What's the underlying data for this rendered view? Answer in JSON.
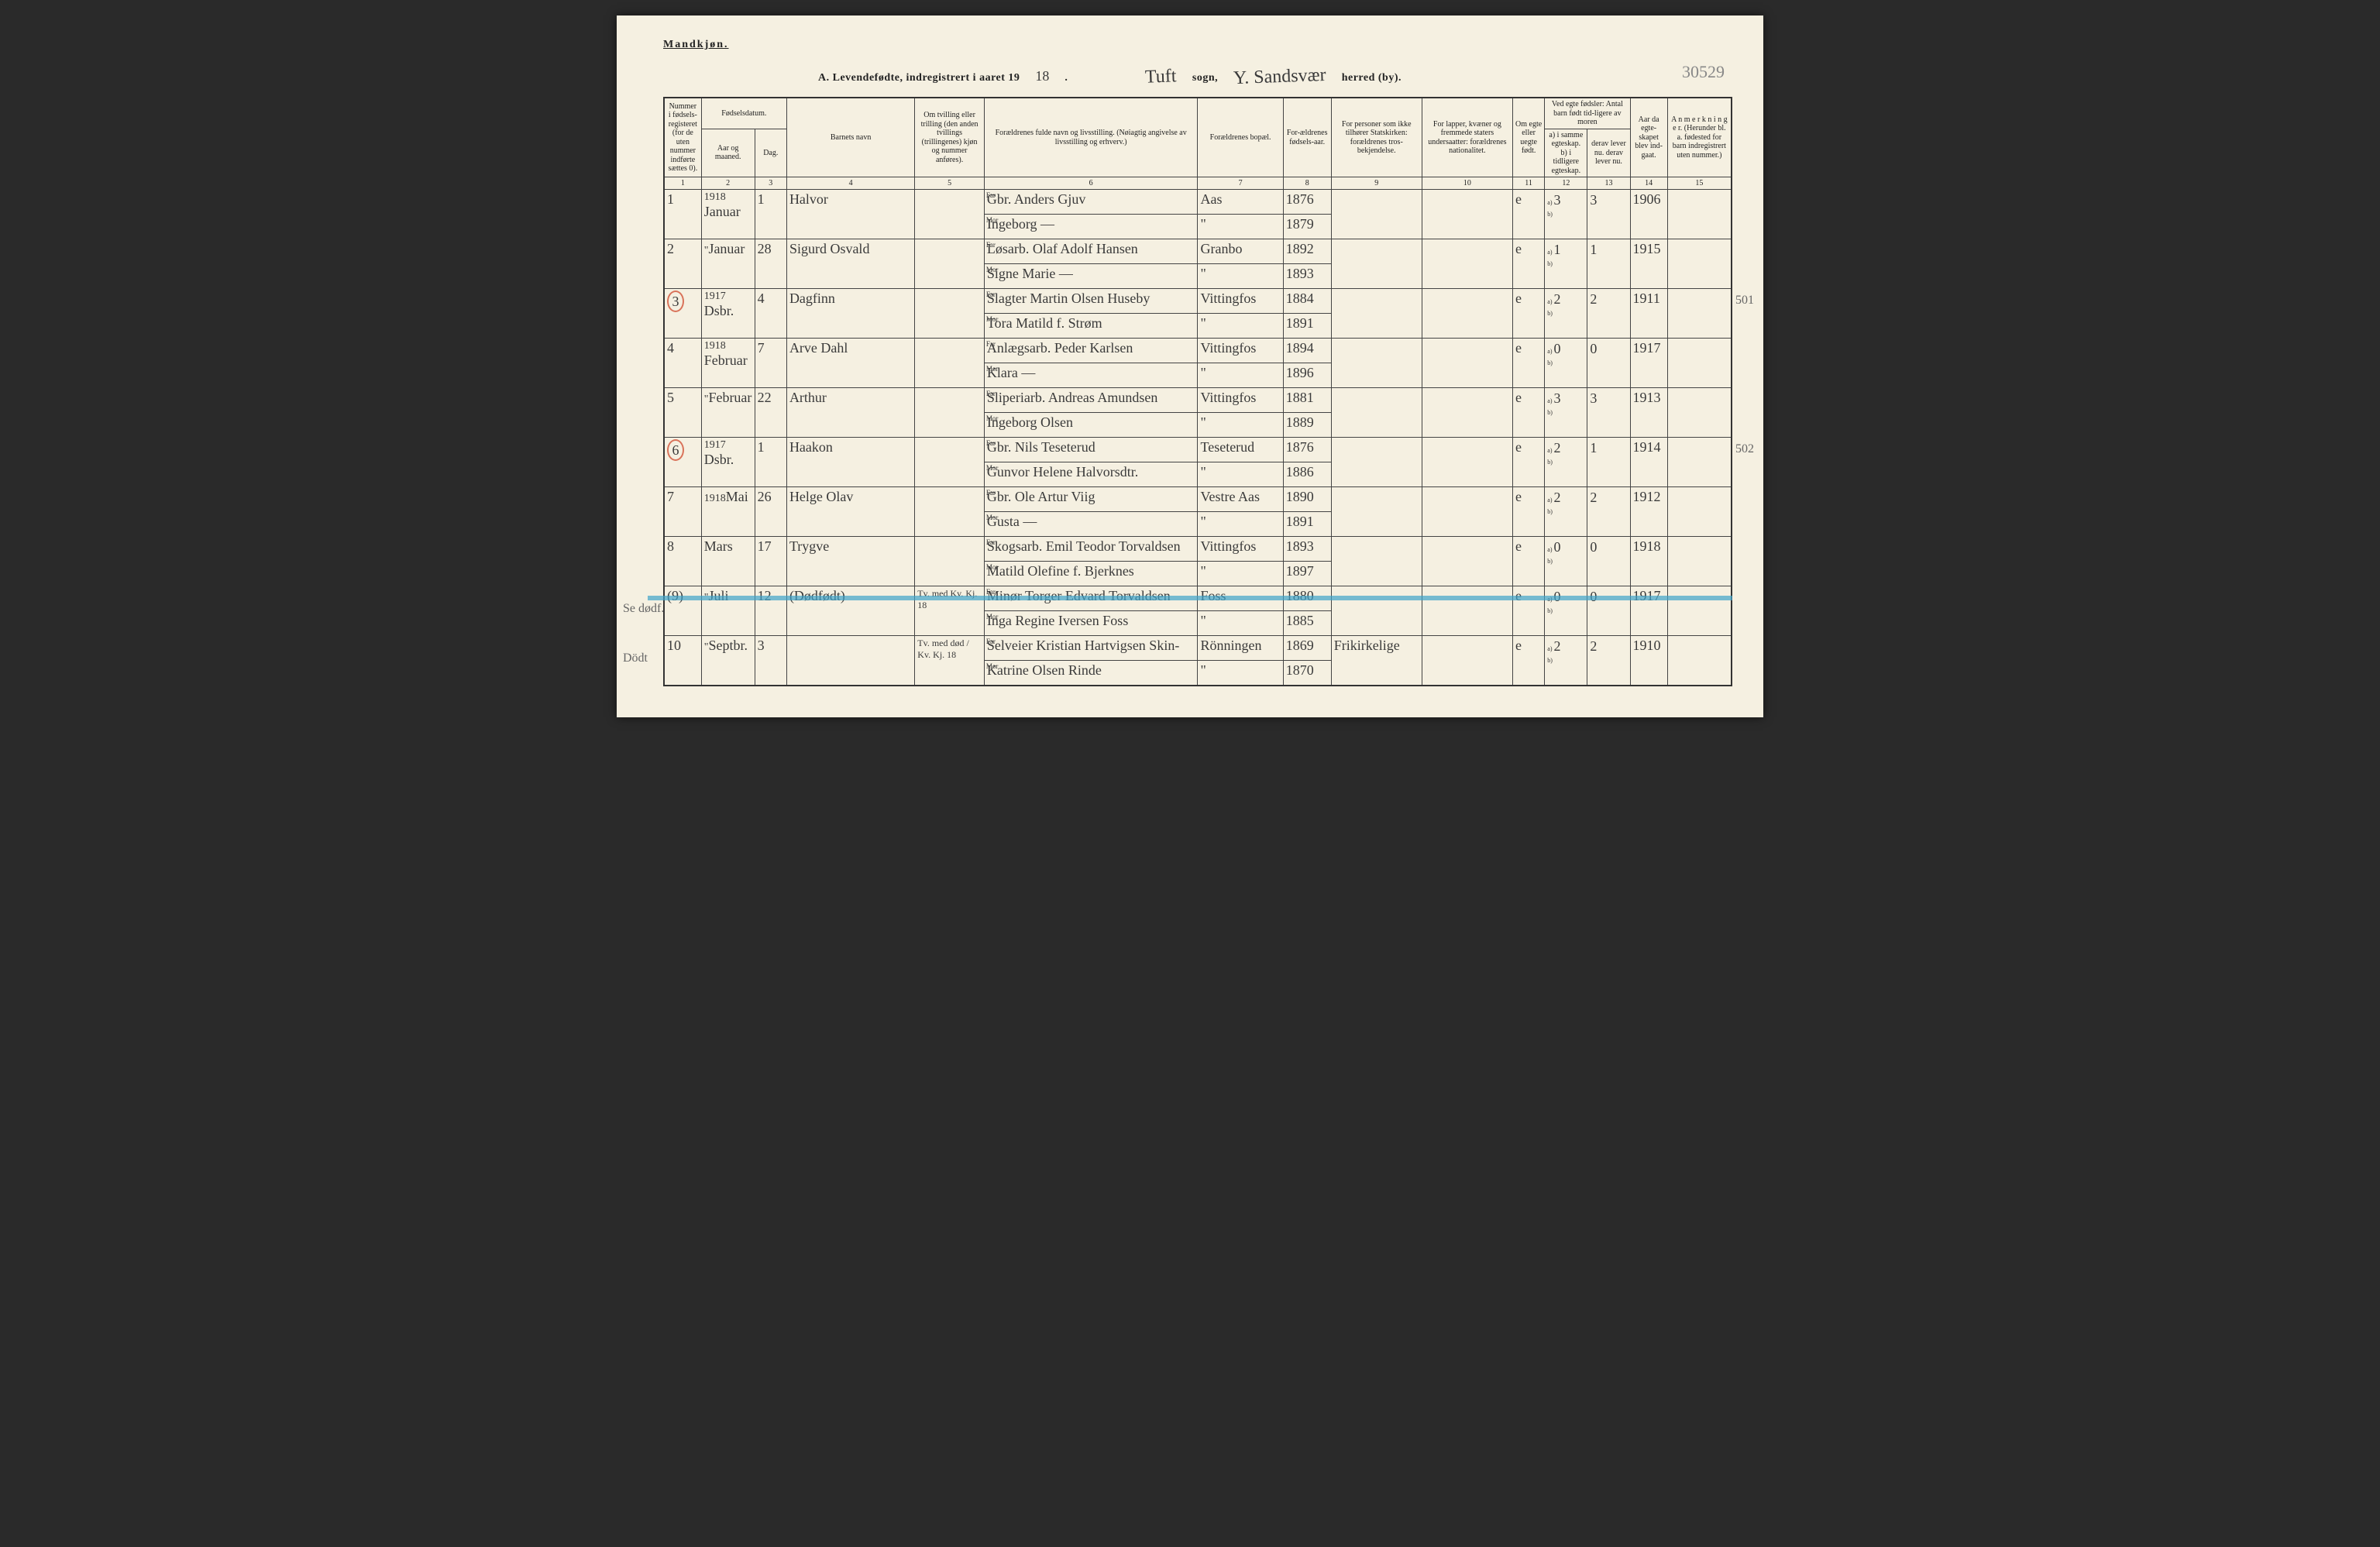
{
  "page": {
    "gender_label": "Mandkjøn.",
    "title_prefix": "A. Levendefødte, indregistrert i aaret 19",
    "year_suffix": "18",
    "sogn_label": "sogn,",
    "herred_label": "herred (by).",
    "sogn_value": "Tuft",
    "herred_value": "Y. Sandsvær",
    "archive_ref": "30529"
  },
  "margin_notes": {
    "left_9": "Se dødf.",
    "left_10": "Dödt",
    "right_501": "501",
    "right_502": "502"
  },
  "headers": {
    "c1": "Nummer i fødsels-registeret (for de uten nummer indførte sættes 0).",
    "c23_top": "Fødselsdatum.",
    "c2": "Aar og maaned.",
    "c3": "Dag.",
    "c4": "Barnets navn",
    "c5": "Om tvilling eller trilling (den anden tvillings (trillingenes) kjøn og nummer anføres).",
    "c6": "Forældrenes fulde navn og livsstilling. (Nøiagtig angivelse av livsstilling og erhverv.)",
    "c7": "Forældrenes bopæl.",
    "c8": "For-ældrenes fødsels-aar.",
    "c9": "For personer som ikke tilhører Statskirken: forældrenes tros-bekjendelse.",
    "c10": "For lapper, kvæner og fremmede staters undersaatter: forældrenes nationalitet.",
    "c11": "Om egte eller uegte født.",
    "c1213_top": "Ved egte fødsler: Antal barn født tid-ligere av moren",
    "c12": "a) i samme egteskap. b) i tidligere egteskap.",
    "c13": "derav lever nu. derav lever nu.",
    "c14": "Aar da egte-skapet blev ind-gaat.",
    "c15": "A n m e r k n i n g e r. (Herunder bl. a. fødested for barn indregistrert uten nummer.)"
  },
  "colnums": [
    "1",
    "2",
    "3",
    "4",
    "5",
    "6",
    "7",
    "8",
    "9",
    "10",
    "11",
    "12",
    "13",
    "14",
    "15"
  ],
  "entries": [
    {
      "num": "1",
      "year_note": "1918",
      "month": "Januar",
      "day": "1",
      "child": "Halvor",
      "twin": "",
      "far": "Gbr. Anders Gjuv",
      "mor": "Ingeborg  —",
      "bopael_far": "Aas",
      "bopael_mor": "\"",
      "faar_far": "1876",
      "faar_mor": "1879",
      "tros": "",
      "nat": "",
      "egte": "e",
      "c12a": "3",
      "c12b": "",
      "c13a": "3",
      "c13b": "",
      "c14": "1906",
      "anm": ""
    },
    {
      "num": "2",
      "year_note": "\"",
      "month": "Januar",
      "day": "28",
      "child": "Sigurd Osvald",
      "twin": "",
      "far": "Løsarb. Olaf Adolf Hansen",
      "mor": "Signe Marie  —",
      "bopael_far": "Granbo",
      "bopael_mor": "\"",
      "faar_far": "1892",
      "faar_mor": "1893",
      "tros": "",
      "nat": "",
      "egte": "e",
      "c12a": "1",
      "c12b": "",
      "c13a": "1",
      "c13b": "",
      "c14": "1915",
      "anm": ""
    },
    {
      "num": "3",
      "year_note": "1917",
      "month": "Dsbr.",
      "day": "4",
      "child": "Dagfinn",
      "twin": "",
      "far": "Slagter Martin Olsen Huseby",
      "mor": "Tora Matild f. Strøm",
      "bopael_far": "Vittingfos",
      "bopael_mor": "\"",
      "faar_far": "1884",
      "faar_mor": "1891",
      "tros": "",
      "nat": "",
      "egte": "e",
      "c12a": "2",
      "c12b": "",
      "c13a": "2",
      "c13b": "",
      "c14": "1911",
      "anm": "",
      "circle": true
    },
    {
      "num": "4",
      "year_note": "1918",
      "month": "Februar",
      "day": "7",
      "child": "Arve Dahl",
      "twin": "",
      "far": "Anlægsarb. Peder Karlsen",
      "mor": "Klara  —",
      "bopael_far": "Vittingfos",
      "bopael_mor": "\"",
      "faar_far": "1894",
      "faar_mor": "1896",
      "tros": "",
      "nat": "",
      "egte": "e",
      "c12a": "0",
      "c12b": "",
      "c13a": "0",
      "c13b": "",
      "c14": "1917",
      "anm": ""
    },
    {
      "num": "5",
      "year_note": "\"",
      "month": "Februar",
      "day": "22",
      "child": "Arthur",
      "twin": "",
      "far": "Sliperiarb. Andreas Amundsen",
      "mor": "Ingeborg Olsen",
      "bopael_far": "Vittingfos",
      "bopael_mor": "\"",
      "faar_far": "1881",
      "faar_mor": "1889",
      "tros": "",
      "nat": "",
      "egte": "e",
      "c12a": "3",
      "c12b": "",
      "c13a": "3",
      "c13b": "",
      "c14": "1913",
      "anm": ""
    },
    {
      "num": "6",
      "year_note": "1917",
      "month": "Dsbr.",
      "day": "1",
      "child": "Haakon",
      "twin": "",
      "far": "Gbr. Nils Teseterud",
      "mor": "Gunvor Helene Halvorsdtr.",
      "bopael_far": "Teseterud",
      "bopael_mor": "\"",
      "faar_far": "1876",
      "faar_mor": "1886",
      "tros": "",
      "nat": "",
      "egte": "e",
      "c12a": "2",
      "c12b": "",
      "c13a": "1",
      "c13b": "",
      "c14": "1914",
      "anm": "",
      "circle": true
    },
    {
      "num": "7",
      "year_note": "1918",
      "month": "Mai",
      "day": "26",
      "child": "Helge Olav",
      "twin": "",
      "far": "Gbr. Ole Artur Viig",
      "mor": "Gusta  —",
      "bopael_far": "Vestre Aas",
      "bopael_mor": "\"",
      "faar_far": "1890",
      "faar_mor": "1891",
      "tros": "",
      "nat": "",
      "egte": "e",
      "c12a": "2",
      "c12b": "",
      "c13a": "2",
      "c13b": "",
      "c14": "1912",
      "anm": ""
    },
    {
      "num": "8",
      "year_note": "",
      "month": "Mars",
      "day": "17",
      "child": "Trygve",
      "twin": "",
      "far": "Skogsarb. Emil Teodor Torvaldsen",
      "mor": "Matild Olefine f. Bjerknes",
      "bopael_far": "Vittingfos",
      "bopael_mor": "\"",
      "faar_far": "1893",
      "faar_mor": "1897",
      "tros": "",
      "nat": "",
      "egte": "e",
      "c12a": "0",
      "c12b": "",
      "c13a": "0",
      "c13b": "",
      "c14": "1918",
      "anm": ""
    },
    {
      "num": "(9)",
      "year_note": "\"",
      "month": "Juli",
      "day": "12",
      "child": "(Dødfødt)",
      "twin": "Tv. med Kv. Kj. 18",
      "far": "Minør Torger Edvard Torvaldsen",
      "mor": "Inga Regine Iversen Foss",
      "bopael_far": "Foss",
      "bopael_mor": "\"",
      "faar_far": "1880",
      "faar_mor": "1885",
      "tros": "",
      "nat": "",
      "egte": "e",
      "c12a": "0",
      "c12b": "",
      "c13a": "0",
      "c13b": "",
      "c14": "1917",
      "anm": "",
      "blue": true
    },
    {
      "num": "10",
      "year_note": "\"",
      "month": "Septbr.",
      "day": "3",
      "child": "",
      "twin": "Tv. med død / Kv. Kj. 18",
      "far": "Selveier Kristian Hartvigsen Skin-",
      "mor": "Katrine Olsen Rinde",
      "bopael_far": "Rönningen",
      "bopael_mor": "\"",
      "faar_far": "1869",
      "faar_mor": "1870",
      "tros": "Frikirkelige",
      "nat": "",
      "egte": "e",
      "c12a": "2",
      "c12b": "",
      "c13a": "2",
      "c13b": "",
      "c14": "1910",
      "anm": ""
    }
  ],
  "colors": {
    "paper": "#f5f0e1",
    "ink": "#222222",
    "red": "#d9735a",
    "blue": "#3fa3c9"
  },
  "colwidths_pct": [
    3.5,
    5,
    3,
    12,
    6.5,
    20,
    8,
    4.5,
    8.5,
    8.5,
    3,
    4,
    4,
    3.5,
    6
  ]
}
